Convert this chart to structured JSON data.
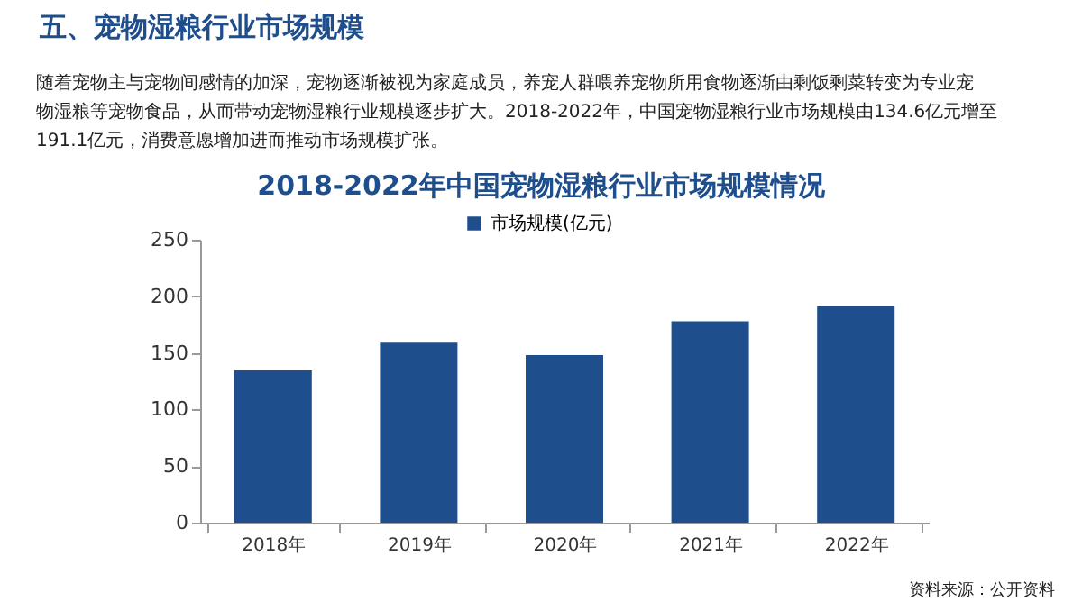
{
  "chart_data": {
    "type": "bar",
    "title": "2018-2022年中国宠物湿粮行业市场规模情况",
    "categories": [
      "2018年",
      "2019年",
      "2020年",
      "2021年",
      "2022年"
    ],
    "series": [
      {
        "name": "市场规模(亿元)",
        "color": "#1f4e8c",
        "values": [
          134.6,
          159,
          148,
          178,
          191.1
        ]
      }
    ],
    "ylim": [
      0,
      250
    ],
    "yticks": [
      0,
      50,
      100,
      150,
      200,
      250
    ],
    "grid": false,
    "legend": "top",
    "annotations": [
      "五、宠物湿粮行业市场规模",
      "随着宠物主与宠物间感情的加深，宠物逐渐被视为家庭成员，养宠人群喂养宠物所用食物逐渐由剩饭剩菜转变为专业宠",
      "物湿粮等宠物食品，从而带动宠物湿粮行业规模逐步扩大。2018-2022年，中国宠物湿粮行业市场规模由134.6亿元增至",
      "191.1亿元，消费意愿增加进而推动市场规模扩张。",
      "资料来源：公开资料"
    ]
  }
}
